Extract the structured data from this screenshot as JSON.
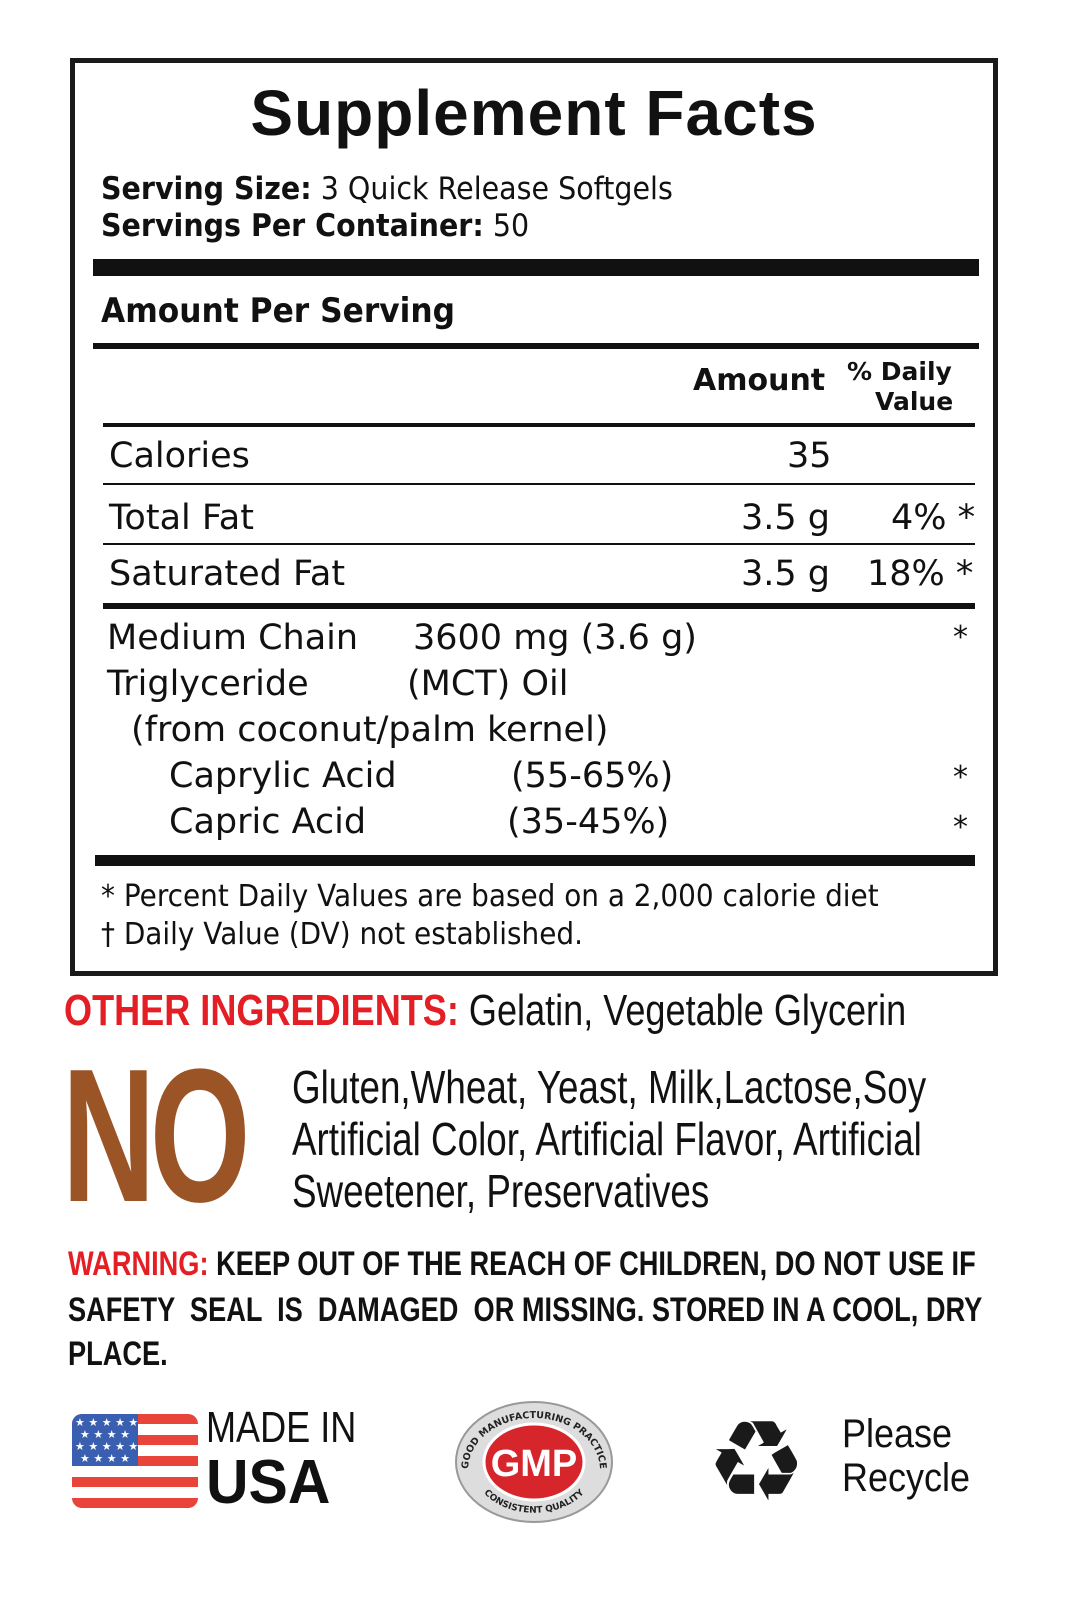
{
  "facts": {
    "title": "Supplement Facts",
    "serving_size_label": "Serving Size:",
    "serving_size_value": "3 Quick Release Softgels",
    "servings_per_container_label": "Servings Per Container:",
    "servings_per_container_value": "50",
    "amount_per_serving": "Amount Per Serving",
    "col_amount": "Amount",
    "col_dv_line1": "% Daily",
    "col_dv_line2": "Value",
    "rows": [
      {
        "name": "Calories",
        "amount": "35",
        "dv": ""
      },
      {
        "name": "Total Fat",
        "amount": "3.5 g",
        "dv": "4% *"
      },
      {
        "name": "Saturated Fat",
        "amount": "3.5 g",
        "dv": "18% *"
      }
    ],
    "mct": {
      "name_line1": "Medium Chain",
      "name_line2": "Triglyceride",
      "amount_line1": "3600 mg (3.6 g)",
      "amount_line2": "(MCT) Oil",
      "source": "(from coconut/palm kernel)",
      "dv": "*",
      "sub": [
        {
          "name": "Caprylic Acid",
          "amount": "(55-65%)",
          "dv": "*"
        },
        {
          "name": "Capric Acid",
          "amount": "(35-45%)",
          "dv": "*"
        }
      ]
    },
    "footnote1": "* Percent Daily Values are based on a 2,000 calorie diet",
    "footnote2": "† Daily Value (DV) not established."
  },
  "other_ingredients": {
    "label": "OTHER INGREDIENTS:",
    "value": "Gelatin, Vegetable Glycerin"
  },
  "free_from": {
    "label": "NO",
    "lines": [
      "Gluten,Wheat, Yeast, Milk,Lactose,Soy",
      "Artificial Color, Artificial Flavor, Artificial",
      "Sweetener, Preservatives"
    ]
  },
  "warning": {
    "label": "WARNING:",
    "line1": "KEEP OUT OF THE REACH OF CHILDREN, DO NOT USE IF",
    "line2": "SAFETY  SEAL  IS  DAMAGED  OR MISSING. STORED IN A COOL, DRY",
    "line3": "PLACE."
  },
  "badges": {
    "made_in_line1": "MADE IN",
    "made_in_line2": "USA",
    "gmp_text": "GMP",
    "gmp_ring_top": "GOOD MANUFACTURING PRACTICE",
    "gmp_ring_bottom": "CONSISTENT QUALITY",
    "recycle_line1": "Please",
    "recycle_line2": "Recycle"
  },
  "colors": {
    "red": "#e31e25",
    "brown": "#9a5426",
    "black": "#111111"
  }
}
